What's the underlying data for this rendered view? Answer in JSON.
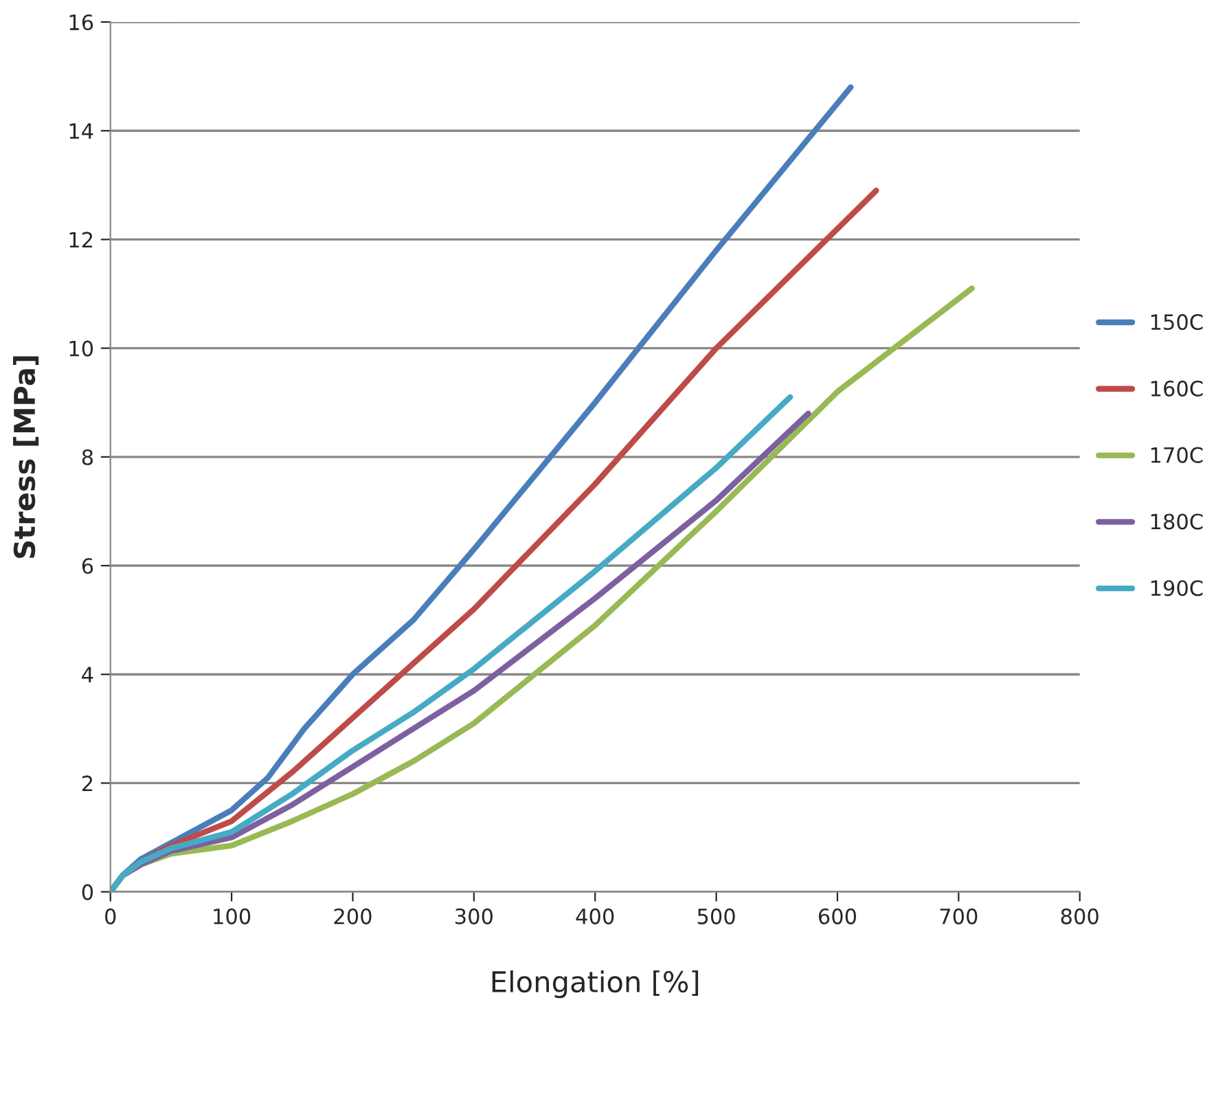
{
  "chart_data": {
    "type": "line",
    "xlabel": "Elongation [%]",
    "ylabel": "Stress [MPa]",
    "xlim": [
      0,
      800
    ],
    "xticks": [
      0,
      100,
      200,
      300,
      400,
      500,
      600,
      700,
      800
    ],
    "ylim": [
      0,
      16
    ],
    "yticks": [
      0,
      2,
      4,
      6,
      8,
      10,
      12,
      14,
      16
    ],
    "grid": "y",
    "legend": "right",
    "marker": "none",
    "line_style": "solid",
    "series": [
      {
        "name": "150C",
        "color": "#4a7ebb",
        "x": [
          0,
          10,
          25,
          50,
          100,
          130,
          160,
          200,
          250,
          300,
          400,
          500,
          611
        ],
        "values": [
          0,
          0.3,
          0.6,
          0.9,
          1.5,
          2.1,
          3.0,
          4.0,
          5.0,
          6.3,
          9.0,
          11.8,
          14.8
        ]
      },
      {
        "name": "160C",
        "color": "#be4b48",
        "x": [
          0,
          10,
          25,
          50,
          100,
          150,
          200,
          250,
          300,
          400,
          500,
          632
        ],
        "values": [
          0,
          0.3,
          0.55,
          0.85,
          1.3,
          2.2,
          3.2,
          4.2,
          5.2,
          7.5,
          10.0,
          12.9
        ]
      },
      {
        "name": "170C",
        "color": "#98b954",
        "x": [
          0,
          10,
          25,
          50,
          100,
          150,
          200,
          250,
          300,
          400,
          500,
          600,
          711
        ],
        "values": [
          0,
          0.3,
          0.5,
          0.7,
          0.85,
          1.3,
          1.8,
          2.4,
          3.1,
          4.9,
          7.0,
          9.2,
          11.1
        ]
      },
      {
        "name": "180C",
        "color": "#7d60a0",
        "x": [
          0,
          10,
          25,
          50,
          100,
          150,
          200,
          250,
          300,
          400,
          500,
          576
        ],
        "values": [
          0,
          0.3,
          0.5,
          0.75,
          1.0,
          1.6,
          2.3,
          3.0,
          3.7,
          5.4,
          7.2,
          8.8
        ]
      },
      {
        "name": "190C",
        "color": "#46aac5",
        "x": [
          0,
          10,
          25,
          50,
          100,
          150,
          200,
          250,
          300,
          400,
          500,
          561
        ],
        "values": [
          0,
          0.3,
          0.55,
          0.8,
          1.1,
          1.8,
          2.6,
          3.3,
          4.1,
          5.9,
          7.8,
          9.1
        ]
      }
    ]
  }
}
